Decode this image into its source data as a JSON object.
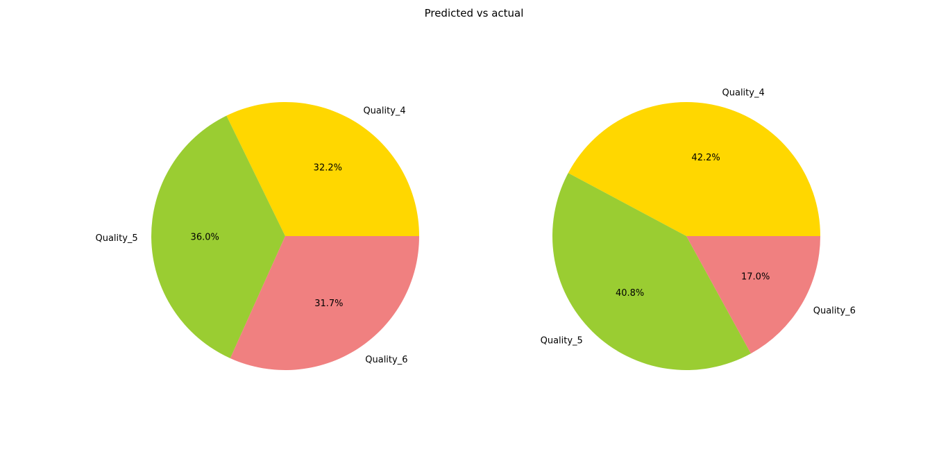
{
  "figure": {
    "title": "Predicted vs actual"
  },
  "colors": {
    "Quality_4": "#FFD700",
    "Quality_5": "#9ACD32",
    "Quality_6": "#F08080"
  },
  "chart_data": [
    {
      "type": "pie",
      "title": "",
      "categories": [
        "Quality_4",
        "Quality_5",
        "Quality_6"
      ],
      "values": [
        32.2,
        36.0,
        31.7
      ],
      "value_labels": [
        "32.2%",
        "36.0%",
        "31.7%"
      ],
      "colors": [
        "#FFD700",
        "#9ACD32",
        "#F08080"
      ],
      "start_angle_deg": 0,
      "direction": "counterclockwise"
    },
    {
      "type": "pie",
      "title": "",
      "categories": [
        "Quality_4",
        "Quality_5",
        "Quality_6"
      ],
      "values": [
        42.2,
        40.8,
        17.0
      ],
      "value_labels": [
        "42.2%",
        "40.8%",
        "17.0%"
      ],
      "colors": [
        "#FFD700",
        "#9ACD32",
        "#F08080"
      ],
      "start_angle_deg": 0,
      "direction": "counterclockwise"
    }
  ]
}
